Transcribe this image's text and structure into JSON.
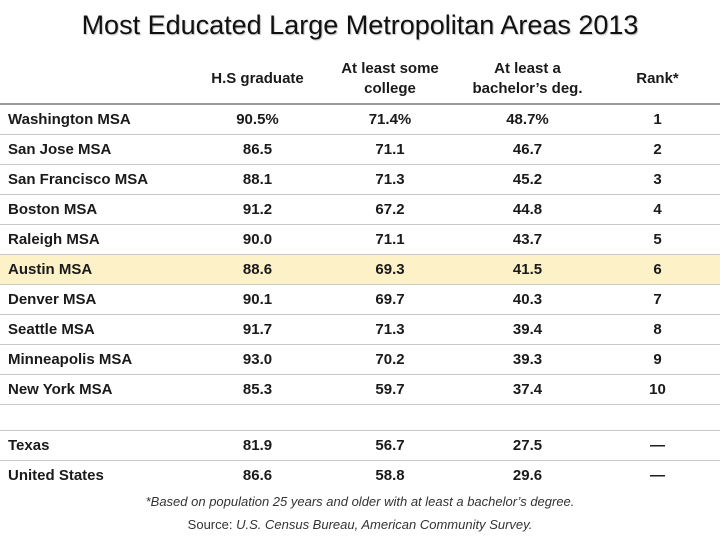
{
  "title": "Most Educated Large Metropolitan Areas 2013",
  "columns": [
    "",
    "H.S graduate",
    "At least some college",
    "At least a bachelor’s deg.",
    "Rank*"
  ],
  "rows": [
    {
      "name": "Washington MSA",
      "hs": "90.5%",
      "college": "71.4%",
      "bachelor": "48.7%",
      "rank": "1"
    },
    {
      "name": "San Jose MSA",
      "hs": "86.5",
      "college": "71.1",
      "bachelor": "46.7",
      "rank": "2"
    },
    {
      "name": "San Francisco MSA",
      "hs": "88.1",
      "college": "71.3",
      "bachelor": "45.2",
      "rank": "3"
    },
    {
      "name": "Boston MSA",
      "hs": "91.2",
      "college": "67.2",
      "bachelor": "44.8",
      "rank": "4"
    },
    {
      "name": "Raleigh MSA",
      "hs": "90.0",
      "college": "71.1",
      "bachelor": "43.7",
      "rank": "5"
    },
    {
      "name": "Austin MSA",
      "hs": "88.6",
      "college": "69.3",
      "bachelor": "41.5",
      "rank": "6"
    },
    {
      "name": "Denver MSA",
      "hs": "90.1",
      "college": "69.7",
      "bachelor": "40.3",
      "rank": "7"
    },
    {
      "name": "Seattle MSA",
      "hs": "91.7",
      "college": "71.3",
      "bachelor": "39.4",
      "rank": "8"
    },
    {
      "name": "Minneapolis MSA",
      "hs": "93.0",
      "college": "70.2",
      "bachelor": "39.3",
      "rank": "9"
    },
    {
      "name": "New York MSA",
      "hs": "85.3",
      "college": "59.7",
      "bachelor": "37.4",
      "rank": "10"
    }
  ],
  "highlighted_row": "Austin MSA",
  "highlight_color": "#fdf1c7",
  "summary_rows": [
    {
      "name": "Texas",
      "hs": "81.9",
      "college": "56.7",
      "bachelor": "27.5",
      "rank": "—"
    },
    {
      "name": "United States",
      "hs": "86.6",
      "college": "58.8",
      "bachelor": "29.6",
      "rank": "—"
    }
  ],
  "footnote": "*Based on population 25 years and older with at least a bachelor’s degree.",
  "source_prefix": "Source: ",
  "source_text": "U.S. Census Bureau, American Community Survey."
}
